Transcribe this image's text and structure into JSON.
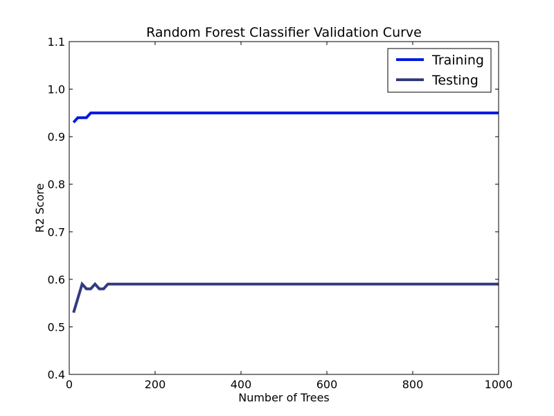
{
  "chart_data": {
    "type": "line",
    "title": "Random Forest Classifier Validation Curve",
    "xlabel": "Number of Trees",
    "ylabel": "R2 Score",
    "xlim": [
      0,
      1000
    ],
    "ylim": [
      0.4,
      1.1
    ],
    "xticks": [
      "0",
      "200",
      "400",
      "600",
      "800",
      "1000"
    ],
    "yticks": [
      "0.4",
      "0.5",
      "0.6",
      "0.7",
      "0.8",
      "0.9",
      "1.0",
      "1.1"
    ],
    "legend_position": "top-right",
    "grid": false,
    "x": [
      10,
      20,
      30,
      40,
      50,
      60,
      70,
      80,
      90,
      100,
      200,
      300,
      400,
      500,
      600,
      700,
      800,
      900,
      1000
    ],
    "series": [
      {
        "name": "Training",
        "color": "#0019e0",
        "values": [
          0.93,
          0.94,
          0.94,
          0.94,
          0.95,
          0.95,
          0.95,
          0.95,
          0.95,
          0.95,
          0.95,
          0.95,
          0.95,
          0.95,
          0.95,
          0.95,
          0.95,
          0.95,
          0.95
        ]
      },
      {
        "name": "Testing",
        "color": "#333a80",
        "values": [
          0.53,
          0.56,
          0.59,
          0.58,
          0.58,
          0.59,
          0.58,
          0.58,
          0.59,
          0.59,
          0.59,
          0.59,
          0.59,
          0.59,
          0.59,
          0.59,
          0.59,
          0.59,
          0.59
        ]
      }
    ]
  }
}
